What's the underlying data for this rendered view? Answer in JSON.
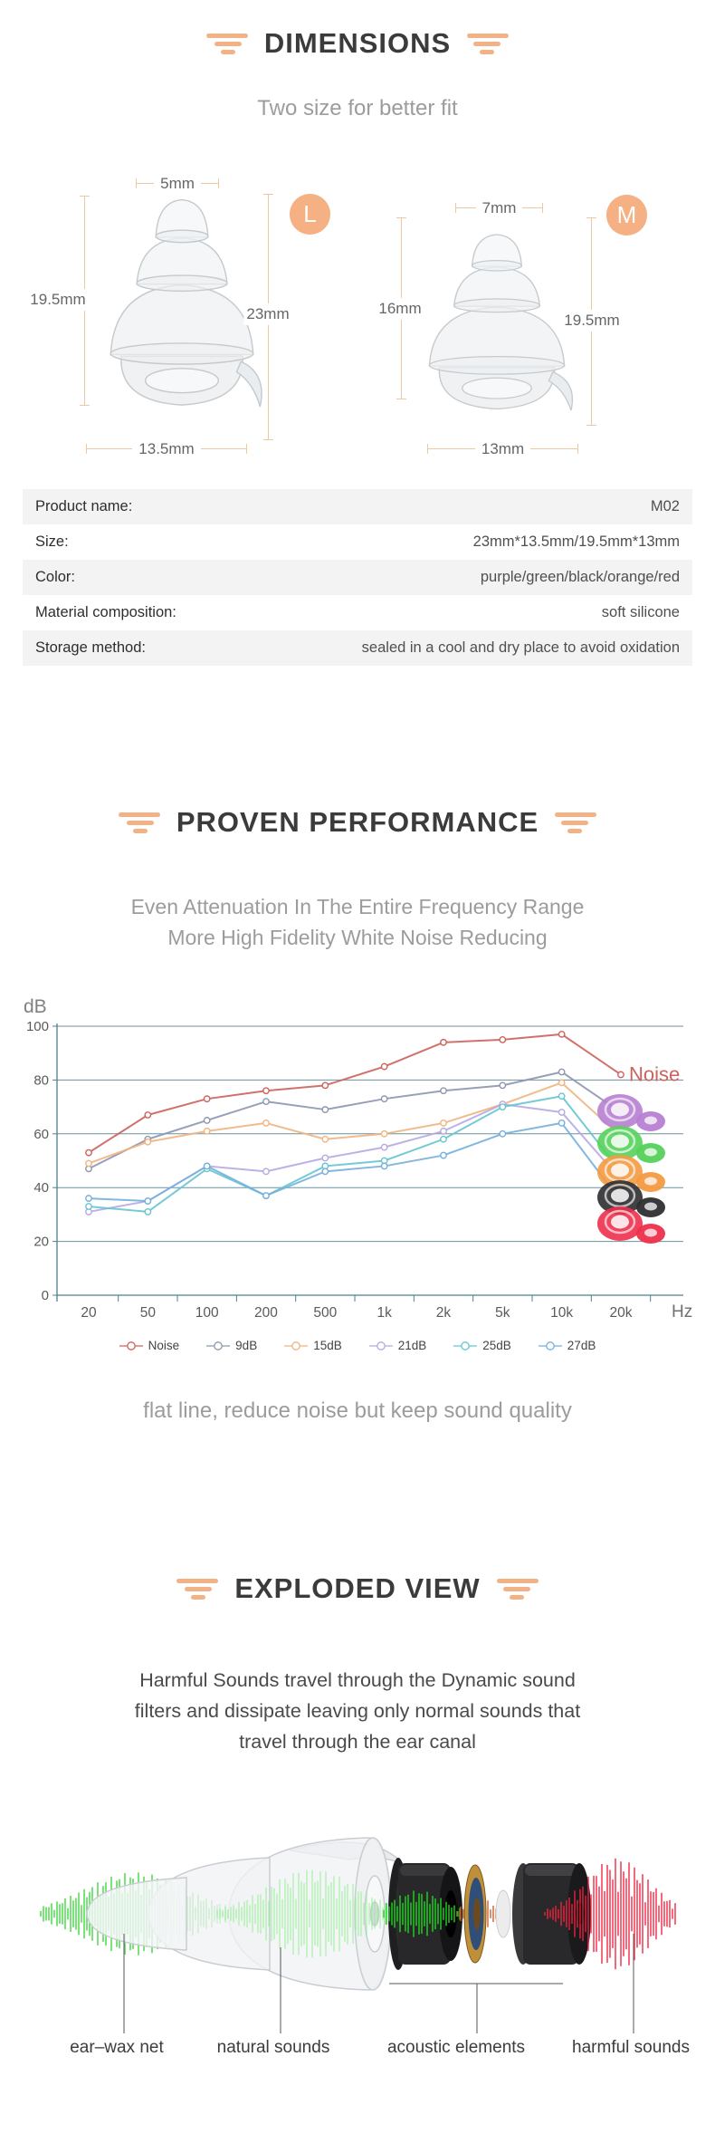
{
  "page": {
    "background": "#ffffff",
    "accent_orange": "#f2b285",
    "dimension_line_orange": "#ecc9a2",
    "axis_teal": "#4f7f8c"
  },
  "dimensions_section": {
    "title": "DIMENSIONS",
    "subtitle": "Two size for better fit",
    "figures": [
      {
        "badge": "L",
        "top_width": "5mm",
        "left_height": "19.5mm",
        "right_height": "23mm",
        "bottom_width": "13.5mm"
      },
      {
        "badge": "M",
        "top_width": "7mm",
        "left_height": "16mm",
        "right_height": "19.5mm",
        "bottom_width": "13mm"
      }
    ],
    "spec_table": {
      "rows": [
        {
          "label": "Product name:",
          "value": "M02"
        },
        {
          "label": "Size:",
          "value": "23mm*13.5mm/19.5mm*13mm"
        },
        {
          "label": "Color:",
          "value": "purple/green/black/orange/red"
        },
        {
          "label": "Material composition:",
          "value": "soft silicone"
        },
        {
          "label": "Storage method:",
          "value": "sealed in a cool and dry place to avoid oxidation"
        }
      ]
    }
  },
  "performance_section": {
    "title": "PROVEN PERFORMANCE",
    "subtitle_line1": "Even Attenuation In The Entire Frequency Range",
    "subtitle_line2": "More High Fidelity White Noise Reducing",
    "caption": "flat line, reduce noise but keep sound quality"
  },
  "chart_data": {
    "type": "line",
    "x_categories": [
      "20",
      "50",
      "100",
      "200",
      "500",
      "1k",
      "2k",
      "5k",
      "10k",
      "20k"
    ],
    "x_unit": "Hz",
    "y_unit": "dB",
    "ylim": [
      0,
      100
    ],
    "yticks": [
      0,
      20,
      40,
      60,
      80,
      100
    ],
    "grid": "horizontal",
    "legend_position": "bottom",
    "end_label": "Noise",
    "series": [
      {
        "name": "Noise",
        "color": "#cd625c",
        "values": [
          53,
          67,
          73,
          76,
          78,
          85,
          94,
          95,
          97,
          82
        ]
      },
      {
        "name": "9dB",
        "color": "#8d96af",
        "values": [
          47,
          58,
          65,
          72,
          69,
          73,
          76,
          78,
          83,
          68
        ]
      },
      {
        "name": "15dB",
        "color": "#f0b47e",
        "values": [
          49,
          57,
          61,
          64,
          58,
          60,
          64,
          71,
          79,
          59
        ]
      },
      {
        "name": "21dB",
        "color": "#b6a8e3",
        "values": [
          31,
          35,
          48,
          46,
          51,
          55,
          61,
          71,
          68,
          43
        ]
      },
      {
        "name": "25dB",
        "color": "#66c5cf",
        "values": [
          33,
          31,
          47,
          37,
          48,
          50,
          58,
          70,
          74,
          46
        ]
      },
      {
        "name": "27dB",
        "color": "#74afdd",
        "values": [
          36,
          35,
          48,
          37,
          46,
          48,
          52,
          60,
          64,
          35
        ]
      }
    ],
    "product_swatches": [
      "#b77fd2",
      "#55d15c",
      "#f49a41",
      "#2e2e30",
      "#ee2f4c"
    ]
  },
  "exploded_section": {
    "title": "EXPLODED VIEW",
    "description_lines": [
      "Harmful Sounds travel through the Dynamic sound",
      "filters and dissipate leaving only normal sounds that",
      "travel through the ear canal"
    ],
    "part_labels": [
      "ear–wax net",
      "natural sounds",
      "acoustic elements",
      "harmful sounds"
    ]
  }
}
